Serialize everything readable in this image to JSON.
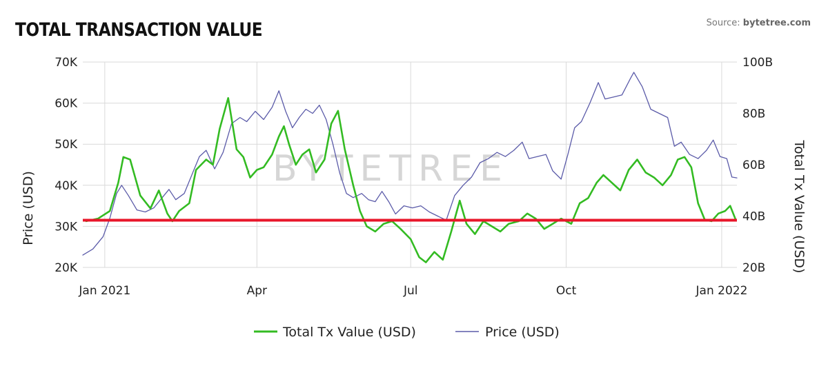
{
  "header": {
    "title": "TOTAL TRANSACTION VALUE",
    "source_prefix": "Source: ",
    "source_name": "bytetree.com"
  },
  "watermark": "BYTETREE",
  "colors": {
    "tx_value": "#33bb22",
    "price": "#5a5aa8",
    "threshold": "#e8162a",
    "grid": "#d9d9d9"
  },
  "chart_data": {
    "type": "line",
    "title": "TOTAL TRANSACTION VALUE",
    "x_ticks": [
      "Jan 2021",
      "Apr",
      "Jul",
      "Oct",
      "Jan 2022"
    ],
    "x_tick_dates": [
      "2021-01-01",
      "2021-04-01",
      "2021-07-01",
      "2021-10-01",
      "2022-01-01"
    ],
    "x_range": [
      "2020-12-19",
      "2022-01-10"
    ],
    "left_axis": {
      "label": "Price (USD)",
      "range": [
        20000,
        70000
      ],
      "ticks": [
        "20K",
        "30K",
        "40K",
        "50K",
        "60K",
        "70K"
      ],
      "tick_values": [
        20000,
        30000,
        40000,
        50000,
        60000,
        70000
      ]
    },
    "right_axis": {
      "label": "Total Tx Value (USD)",
      "range": [
        20,
        100
      ],
      "ticks": [
        "20B",
        "40B",
        "60B",
        "80B",
        "100B"
      ],
      "tick_values": [
        20,
        40,
        60,
        80,
        100
      ]
    },
    "grid": true,
    "legend_position": "bottom",
    "reference_line": {
      "axis": "left",
      "value": 31500
    },
    "series": [
      {
        "name": "Total Tx Value (USD)",
        "axis": "right",
        "points": [
          [
            "2020-12-21",
            38.0
          ],
          [
            "2020-12-28",
            39.0
          ],
          [
            "2021-01-04",
            42.0
          ],
          [
            "2021-01-09",
            53.0
          ],
          [
            "2021-01-12",
            63.0
          ],
          [
            "2021-01-16",
            62.0
          ],
          [
            "2021-01-22",
            48.0
          ],
          [
            "2021-01-28",
            43.0
          ],
          [
            "2021-02-02",
            50.0
          ],
          [
            "2021-02-07",
            41.0
          ],
          [
            "2021-02-10",
            38.0
          ],
          [
            "2021-02-14",
            42.0
          ],
          [
            "2021-02-20",
            45.0
          ],
          [
            "2021-02-24",
            58.0
          ],
          [
            "2021-03-02",
            62.0
          ],
          [
            "2021-03-06",
            60.0
          ],
          [
            "2021-03-10",
            74.0
          ],
          [
            "2021-03-15",
            86.0
          ],
          [
            "2021-03-20",
            66.0
          ],
          [
            "2021-03-24",
            63.0
          ],
          [
            "2021-03-28",
            55.0
          ],
          [
            "2021-04-01",
            58.0
          ],
          [
            "2021-04-05",
            59.0
          ],
          [
            "2021-04-10",
            64.0
          ],
          [
            "2021-04-14",
            71.0
          ],
          [
            "2021-04-17",
            75.0
          ],
          [
            "2021-04-20",
            68.0
          ],
          [
            "2021-04-24",
            60.0
          ],
          [
            "2021-04-28",
            64.0
          ],
          [
            "2021-05-02",
            66.0
          ],
          [
            "2021-05-06",
            57.0
          ],
          [
            "2021-05-11",
            62.0
          ],
          [
            "2021-05-15",
            76.0
          ],
          [
            "2021-05-19",
            81.0
          ],
          [
            "2021-05-23",
            66.0
          ],
          [
            "2021-05-28",
            52.0
          ],
          [
            "2021-06-01",
            42.0
          ],
          [
            "2021-06-05",
            36.0
          ],
          [
            "2021-06-10",
            34.0
          ],
          [
            "2021-06-15",
            37.0
          ],
          [
            "2021-06-20",
            38.0
          ],
          [
            "2021-06-25",
            35.0
          ],
          [
            "2021-07-01",
            31.0
          ],
          [
            "2021-07-06",
            24.0
          ],
          [
            "2021-07-10",
            22.0
          ],
          [
            "2021-07-15",
            26.0
          ],
          [
            "2021-07-20",
            23.0
          ],
          [
            "2021-07-25",
            34.0
          ],
          [
            "2021-07-30",
            46.0
          ],
          [
            "2021-08-03",
            37.0
          ],
          [
            "2021-08-08",
            33.0
          ],
          [
            "2021-08-13",
            38.0
          ],
          [
            "2021-08-18",
            36.0
          ],
          [
            "2021-08-23",
            34.0
          ],
          [
            "2021-08-28",
            37.0
          ],
          [
            "2021-09-03",
            38.0
          ],
          [
            "2021-09-08",
            41.0
          ],
          [
            "2021-09-13",
            39.0
          ],
          [
            "2021-09-18",
            35.0
          ],
          [
            "2021-09-23",
            37.0
          ],
          [
            "2021-09-28",
            39.0
          ],
          [
            "2021-10-04",
            37.0
          ],
          [
            "2021-10-09",
            45.0
          ],
          [
            "2021-10-14",
            47.0
          ],
          [
            "2021-10-19",
            53.0
          ],
          [
            "2021-10-23",
            56.0
          ],
          [
            "2021-10-28",
            53.0
          ],
          [
            "2021-11-02",
            50.0
          ],
          [
            "2021-11-07",
            58.0
          ],
          [
            "2021-11-12",
            62.0
          ],
          [
            "2021-11-17",
            57.0
          ],
          [
            "2021-11-22",
            55.0
          ],
          [
            "2021-11-27",
            52.0
          ],
          [
            "2021-12-02",
            56.0
          ],
          [
            "2021-12-06",
            62.0
          ],
          [
            "2021-12-10",
            63.0
          ],
          [
            "2021-12-14",
            59.0
          ],
          [
            "2021-12-18",
            45.0
          ],
          [
            "2021-12-22",
            38.5
          ],
          [
            "2021-12-26",
            38.0
          ],
          [
            "2021-12-30",
            41.0
          ],
          [
            "2022-01-03",
            42.0
          ],
          [
            "2022-01-06",
            44.0
          ],
          [
            "2022-01-09",
            39.0
          ]
        ]
      },
      {
        "name": "Price (USD)",
        "axis": "left",
        "points": [
          [
            "2020-12-19",
            23000
          ],
          [
            "2020-12-25",
            24500
          ],
          [
            "2020-12-31",
            27500
          ],
          [
            "2021-01-04",
            32000
          ],
          [
            "2021-01-08",
            38000
          ],
          [
            "2021-01-11",
            40000
          ],
          [
            "2021-01-15",
            37500
          ],
          [
            "2021-01-20",
            34000
          ],
          [
            "2021-01-25",
            33500
          ],
          [
            "2021-01-30",
            34500
          ],
          [
            "2021-02-04",
            37000
          ],
          [
            "2021-02-08",
            39000
          ],
          [
            "2021-02-12",
            36500
          ],
          [
            "2021-02-17",
            38000
          ],
          [
            "2021-02-22",
            43000
          ],
          [
            "2021-02-26",
            47000
          ],
          [
            "2021-03-02",
            48500
          ],
          [
            "2021-03-07",
            44000
          ],
          [
            "2021-03-12",
            48000
          ],
          [
            "2021-03-17",
            55000
          ],
          [
            "2021-03-22",
            56500
          ],
          [
            "2021-03-26",
            55500
          ],
          [
            "2021-03-31",
            58000
          ],
          [
            "2021-04-05",
            56000
          ],
          [
            "2021-04-10",
            59000
          ],
          [
            "2021-04-14",
            63000
          ],
          [
            "2021-04-18",
            58000
          ],
          [
            "2021-04-22",
            54000
          ],
          [
            "2021-04-26",
            56500
          ],
          [
            "2021-04-30",
            58500
          ],
          [
            "2021-05-04",
            57500
          ],
          [
            "2021-05-08",
            59500
          ],
          [
            "2021-05-12",
            56000
          ],
          [
            "2021-05-16",
            50000
          ],
          [
            "2021-05-20",
            43000
          ],
          [
            "2021-05-24",
            38000
          ],
          [
            "2021-05-28",
            37000
          ],
          [
            "2021-06-02",
            38000
          ],
          [
            "2021-06-06",
            36500
          ],
          [
            "2021-06-10",
            36000
          ],
          [
            "2021-06-14",
            38500
          ],
          [
            "2021-06-18",
            36000
          ],
          [
            "2021-06-22",
            33000
          ],
          [
            "2021-06-27",
            35000
          ],
          [
            "2021-07-02",
            34500
          ],
          [
            "2021-07-07",
            35000
          ],
          [
            "2021-07-12",
            33500
          ],
          [
            "2021-07-17",
            32500
          ],
          [
            "2021-07-22",
            31500
          ],
          [
            "2021-07-27",
            37500
          ],
          [
            "2021-08-01",
            40000
          ],
          [
            "2021-08-06",
            42000
          ],
          [
            "2021-08-11",
            45500
          ],
          [
            "2021-08-16",
            46500
          ],
          [
            "2021-08-21",
            48000
          ],
          [
            "2021-08-26",
            47000
          ],
          [
            "2021-08-31",
            48500
          ],
          [
            "2021-09-05",
            50500
          ],
          [
            "2021-09-09",
            46500
          ],
          [
            "2021-09-14",
            47000
          ],
          [
            "2021-09-19",
            47500
          ],
          [
            "2021-09-23",
            43500
          ],
          [
            "2021-09-28",
            41500
          ],
          [
            "2021-10-02",
            47500
          ],
          [
            "2021-10-06",
            54000
          ],
          [
            "2021-10-10",
            55500
          ],
          [
            "2021-10-15",
            60000
          ],
          [
            "2021-10-20",
            65000
          ],
          [
            "2021-10-24",
            61000
          ],
          [
            "2021-10-29",
            61500
          ],
          [
            "2021-11-03",
            62000
          ],
          [
            "2021-11-08",
            66000
          ],
          [
            "2021-11-10",
            67500
          ],
          [
            "2021-11-15",
            64000
          ],
          [
            "2021-11-20",
            58500
          ],
          [
            "2021-11-25",
            57500
          ],
          [
            "2021-11-30",
            56500
          ],
          [
            "2021-12-04",
            49500
          ],
          [
            "2021-12-08",
            50500
          ],
          [
            "2021-12-13",
            47500
          ],
          [
            "2021-12-18",
            46500
          ],
          [
            "2021-12-23",
            48500
          ],
          [
            "2021-12-27",
            51000
          ],
          [
            "2021-12-31",
            47000
          ],
          [
            "2022-01-04",
            46500
          ],
          [
            "2022-01-07",
            42000
          ],
          [
            "2022-01-10",
            41800
          ]
        ]
      }
    ]
  }
}
